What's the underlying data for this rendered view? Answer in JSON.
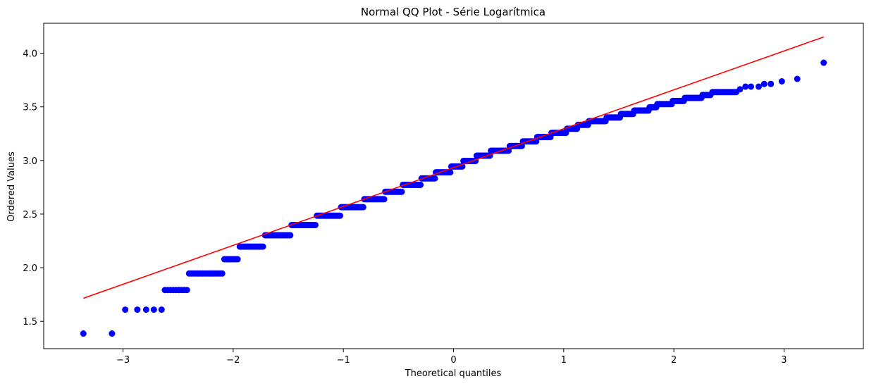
{
  "chart_data": {
    "type": "scatter",
    "title": "Normal QQ Plot - Série Logarítmica",
    "xlabel": "Theoretical quantiles",
    "ylabel": "Ordered Values",
    "xlim": [
      -3.72,
      3.72
    ],
    "ylim": [
      1.245,
      4.28
    ],
    "xticks": [
      -3,
      -2,
      -1,
      0,
      1,
      2,
      3
    ],
    "xtick_labels": [
      "−3",
      "−2",
      "−1",
      "0",
      "1",
      "2",
      "3"
    ],
    "yticks": [
      1.5,
      2.0,
      2.5,
      3.0,
      3.5,
      4.0
    ],
    "ytick_labels": [
      "1.5",
      "2.0",
      "2.5",
      "3.0",
      "3.5",
      "4.0"
    ],
    "grid": false,
    "legend": "none",
    "colors": {
      "points": "#0000ff",
      "fit_line": "#ff0000"
    },
    "series": [
      {
        "type": "points",
        "segments": [
          {
            "y": 1.386,
            "x": [
              -3.36,
              -3.1
            ]
          },
          {
            "y": 1.609,
            "x": [
              -2.98,
              -2.87,
              -2.79,
              -2.72,
              -2.65
            ]
          },
          {
            "y": 1.792,
            "x_start": -2.62,
            "x_end": -2.42,
            "step": 0.025
          },
          {
            "y": 1.946,
            "x_start": -2.4,
            "x_end": -2.1,
            "step": 0.02
          },
          {
            "y": 2.079,
            "x_start": -2.08,
            "x_end": -1.95,
            "step": 0.015
          },
          {
            "y": 2.197,
            "x_start": -1.94,
            "x_end": -1.72,
            "step": 0.015
          },
          {
            "y": 2.303,
            "x_start": -1.71,
            "x_end": -1.48,
            "step": 0.012
          },
          {
            "y": 2.398,
            "x_start": -1.47,
            "x_end": -1.25,
            "step": 0.012
          },
          {
            "y": 2.485,
            "x_start": -1.24,
            "x_end": -1.03,
            "step": 0.01
          },
          {
            "y": 2.565,
            "x_start": -1.02,
            "x_end": -0.82,
            "step": 0.01
          },
          {
            "y": 2.639,
            "x_start": -0.81,
            "x_end": -0.63,
            "step": 0.01
          },
          {
            "y": 2.708,
            "x_start": -0.62,
            "x_end": -0.47,
            "step": 0.01
          },
          {
            "y": 2.773,
            "x_start": -0.46,
            "x_end": -0.3,
            "step": 0.01
          },
          {
            "y": 2.833,
            "x_start": -0.29,
            "x_end": -0.17,
            "step": 0.01
          },
          {
            "y": 2.89,
            "x_start": -0.16,
            "x_end": -0.03,
            "step": 0.01
          },
          {
            "y": 2.944,
            "x_start": -0.02,
            "x_end": 0.08,
            "step": 0.01
          },
          {
            "y": 2.996,
            "x_start": 0.09,
            "x_end": 0.2,
            "step": 0.01
          },
          {
            "y": 3.045,
            "x_start": 0.21,
            "x_end": 0.33,
            "step": 0.01
          },
          {
            "y": 3.091,
            "x_start": 0.34,
            "x_end": 0.5,
            "step": 0.01
          },
          {
            "y": 3.135,
            "x_start": 0.51,
            "x_end": 0.62,
            "step": 0.01
          },
          {
            "y": 3.178,
            "x_start": 0.63,
            "x_end": 0.75,
            "step": 0.01
          },
          {
            "y": 3.219,
            "x_start": 0.76,
            "x_end": 0.88,
            "step": 0.01
          },
          {
            "y": 3.258,
            "x_start": 0.89,
            "x_end": 1.02,
            "step": 0.01
          },
          {
            "y": 3.296,
            "x_start": 1.03,
            "x_end": 1.12,
            "step": 0.01
          },
          {
            "y": 3.332,
            "x_start": 1.13,
            "x_end": 1.22,
            "step": 0.01
          },
          {
            "y": 3.367,
            "x_start": 1.23,
            "x_end": 1.38,
            "step": 0.01
          },
          {
            "y": 3.401,
            "x_start": 1.39,
            "x_end": 1.51,
            "step": 0.01
          },
          {
            "y": 3.434,
            "x_start": 1.52,
            "x_end": 1.63,
            "step": 0.01
          },
          {
            "y": 3.466,
            "x_start": 1.64,
            "x_end": 1.77,
            "step": 0.01
          },
          {
            "y": 3.497,
            "x_start": 1.78,
            "x_end": 1.84,
            "step": 0.01
          },
          {
            "y": 3.526,
            "x_start": 1.85,
            "x_end": 1.98,
            "step": 0.01
          },
          {
            "y": 3.555,
            "x_start": 1.99,
            "x_end": 2.09,
            "step": 0.01
          },
          {
            "y": 3.584,
            "x_start": 2.1,
            "x_end": 2.25,
            "step": 0.01
          },
          {
            "y": 3.611,
            "x_start": 2.26,
            "x_end": 2.34,
            "step": 0.012
          },
          {
            "y": 3.638,
            "x_start": 2.35,
            "x_end": 2.57,
            "step": 0.012
          },
          {
            "y": 3.664,
            "x": [
              2.6
            ]
          },
          {
            "y": 3.689,
            "x": [
              2.65,
              2.7,
              2.77
            ]
          },
          {
            "y": 3.714,
            "x": [
              2.82,
              2.88
            ]
          },
          {
            "y": 3.738,
            "x": [
              2.98
            ]
          },
          {
            "y": 3.761,
            "x": [
              3.12
            ]
          },
          {
            "y": 3.912,
            "x": [
              3.36
            ]
          }
        ]
      },
      {
        "type": "fit_line",
        "x": [
          -3.36,
          3.36
        ],
        "y": [
          1.715,
          4.152
        ]
      }
    ]
  }
}
